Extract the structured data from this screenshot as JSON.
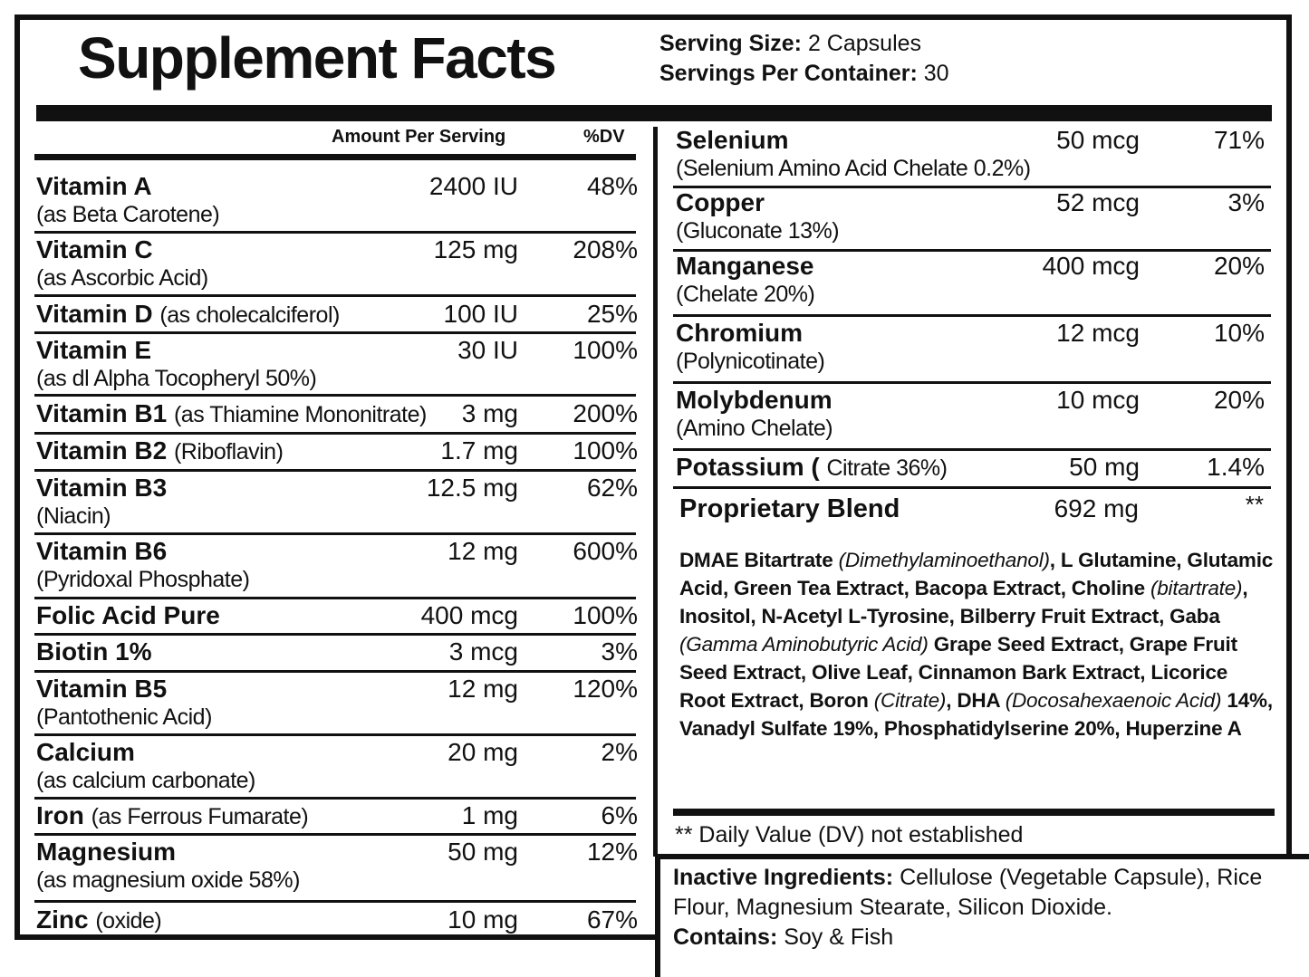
{
  "title": "Supplement Facts",
  "serving": {
    "size_label": "Serving Size:",
    "size_value": "2 Capsules",
    "per_container_label": "Servings Per Container:",
    "per_container_value": "30"
  },
  "headers": {
    "amount": "Amount Per Serving",
    "dv": "%DV"
  },
  "left_nutrients": [
    {
      "name": "Vitamin A",
      "inline": "",
      "sub": "(as Beta Carotene)",
      "amount": "2400 IU",
      "dv": "48%"
    },
    {
      "name": "Vitamin C",
      "inline": "",
      "sub": "(as Ascorbic Acid)",
      "amount": "125 mg",
      "dv": "208%"
    },
    {
      "name": "Vitamin D",
      "inline": "(as cholecalciferol)",
      "sub": "",
      "amount": "100 IU",
      "dv": "25%"
    },
    {
      "name": "Vitamin E",
      "inline": "",
      "sub": "(as dl Alpha Tocopheryl 50%)",
      "amount": "30 IU",
      "dv": "100%"
    },
    {
      "name": "Vitamin B1",
      "inline": "(as Thiamine Mononitrate)",
      "sub": "",
      "amount": "3 mg",
      "dv": "200%"
    },
    {
      "name": "Vitamin B2",
      "inline": "(Riboflavin)",
      "sub": "",
      "amount": "1.7 mg",
      "dv": "100%"
    },
    {
      "name": "Vitamin B3",
      "inline": "",
      "sub": "(Niacin)",
      "amount": "12.5 mg",
      "dv": "62%"
    },
    {
      "name": "Vitamin B6",
      "inline": "",
      "sub": "(Pyridoxal Phosphate)",
      "amount": "12 mg",
      "dv": "600%"
    },
    {
      "name": "Folic Acid Pure",
      "inline": "",
      "sub": "",
      "amount": "400 mcg",
      "dv": "100%"
    },
    {
      "name": "Biotin 1%",
      "inline": "",
      "sub": "",
      "amount": "3 mcg",
      "dv": "3%"
    },
    {
      "name": "Vitamin B5",
      "inline": "",
      "sub": "(Pantothenic Acid)",
      "amount": "12 mg",
      "dv": "120%"
    },
    {
      "name": "Calcium",
      "inline": "",
      "sub": "(as calcium carbonate)",
      "amount": "20 mg",
      "dv": "2%"
    },
    {
      "name": "Iron",
      "inline": "(as Ferrous Fumarate)",
      "sub": "",
      "amount": "1 mg",
      "dv": "6%"
    },
    {
      "name": "Magnesium",
      "inline": "",
      "sub": "(as magnesium oxide 58%)",
      "amount": "50 mg",
      "dv": "12%"
    },
    {
      "name": "Zinc",
      "inline": "(oxide)",
      "sub": "",
      "amount": "10 mg",
      "dv": "67%"
    }
  ],
  "right_nutrients": [
    {
      "name": "Selenium",
      "inline": "",
      "sub": "(Selenium Amino Acid Chelate 0.2%)",
      "amount": "50 mcg",
      "dv": "71%"
    },
    {
      "name": "Copper",
      "inline": "",
      "sub": "(Gluconate 13%)",
      "amount": "52 mcg",
      "dv": "3%"
    },
    {
      "name": "Manganese",
      "inline": "",
      "sub": "(Chelate 20%)",
      "amount": "400 mcg",
      "dv": "20%"
    },
    {
      "name": "Chromium",
      "inline": "",
      "sub": "(Polynicotinate)",
      "amount": "12 mcg",
      "dv": "10%"
    },
    {
      "name": "Molybdenum",
      "inline": "",
      "sub": "(Amino Chelate)",
      "amount": "10 mcg",
      "dv": "20%"
    },
    {
      "name": "Potassium (",
      "inline": "Citrate 36%)",
      "sub": "",
      "amount": "50 mg",
      "dv": "1.4%"
    }
  ],
  "blend": {
    "name": "Proprietary Blend",
    "amount": "692 mg",
    "dv": "**",
    "ingredients": [
      {
        "t": "DMAE Bitartrate ",
        "i": false
      },
      {
        "t": "(Dimethylaminoethanol)",
        "i": true
      },
      {
        "t": ", L Glutamine, Glutamic Acid, Green Tea Extract, Bacopa Extract, Choline ",
        "i": false
      },
      {
        "t": "(bitartrate)",
        "i": true
      },
      {
        "t": ", Inositol, N-Acetyl L-Tyrosine, Bilberry Fruit Extract, Gaba ",
        "i": false
      },
      {
        "t": "(Gamma Aminobutyric Acid)",
        "i": true
      },
      {
        "t": " Grape Seed Extract, Grape Fruit Seed Extract, Olive Leaf, Cinnamon Bark Extract, Licorice Root Extract, Boron ",
        "i": false
      },
      {
        "t": "(Citrate)",
        "i": true
      },
      {
        "t": ", DHA ",
        "i": false
      },
      {
        "t": "(Docosahexaenoic Acid)",
        "i": true
      },
      {
        "t": " 14%, Vanadyl Sulfate 19%, Phosphatidylserine 20%, Huperzine A",
        "i": false
      }
    ]
  },
  "dv_note": "** Daily Value (DV) not established",
  "inactive": {
    "label": "Inactive Ingredients:",
    "value": " Cellulose (Vegetable Capsule), Rice Flour, Magnesium Stearate, Silicon Dioxide.",
    "contains_label": "Contains:",
    "contains_value": " Soy & Fish"
  }
}
